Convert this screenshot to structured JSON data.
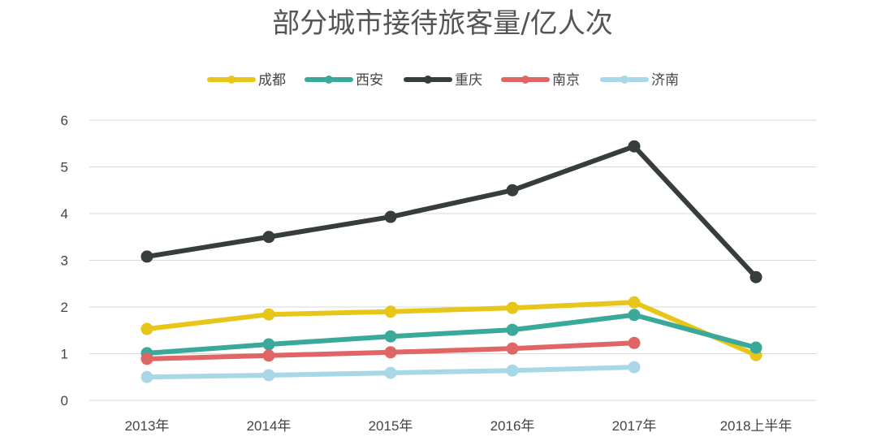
{
  "chart_data": {
    "type": "line",
    "title": "部分城市接待旅客量/亿人次",
    "xlabel": "",
    "ylabel": "",
    "categories": [
      "2013年",
      "2014年",
      "2015年",
      "2016年",
      "2017年",
      "2018上半年"
    ],
    "ylim": [
      0,
      6
    ],
    "yticks": [
      0,
      1,
      2,
      3,
      4,
      5,
      6
    ],
    "grid": true,
    "legend_position": "top",
    "series": [
      {
        "name": "成都",
        "color": "#e8c619",
        "values": [
          1.53,
          1.84,
          1.9,
          1.98,
          2.1,
          0.97
        ]
      },
      {
        "name": "西安",
        "color": "#3aa99a",
        "values": [
          1.01,
          1.2,
          1.37,
          1.51,
          1.83,
          1.13
        ]
      },
      {
        "name": "重庆",
        "color": "#363d3c",
        "values": [
          3.08,
          3.5,
          3.93,
          4.5,
          5.44,
          2.64
        ]
      },
      {
        "name": "南京",
        "color": "#e06666",
        "values": [
          0.89,
          0.96,
          1.03,
          1.11,
          1.23,
          null
        ]
      },
      {
        "name": "济南",
        "color": "#a8d8e8",
        "values": [
          0.5,
          0.54,
          0.59,
          0.64,
          0.71,
          null
        ]
      }
    ]
  }
}
